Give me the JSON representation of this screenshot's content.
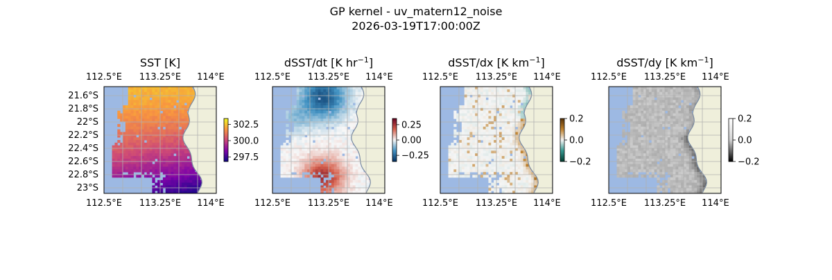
{
  "figure": {
    "title_line1": "GP kernel - uv_matern12_noise",
    "title_line2": "2026-03-19T17:00:00Z"
  },
  "chart_data": [
    {
      "type": "heatmap",
      "title": "SST [K]",
      "title_base": "SST [K]",
      "title_sup": "",
      "title_tail": "",
      "x_ticks": [
        "112.5°E",
        "113.25°E",
        "114°E"
      ],
      "y_ticks": [
        "21.6°S",
        "21.8°S",
        "22°S",
        "22.2°S",
        "22.4°S",
        "22.6°S",
        "22.8°S",
        "23°S"
      ],
      "colormap": "plasma",
      "colorbar": {
        "ticks": [
          "302.5",
          "300.0",
          "297.5"
        ],
        "range": [
          296.8,
          303.4
        ]
      }
    },
    {
      "type": "heatmap",
      "title": "dSST/dt [K hr^-1]",
      "title_base": "dSST/dt [K hr",
      "title_sup": "−1",
      "title_tail": "]",
      "x_ticks": [
        "112.5°E",
        "113.25°E",
        "114°E"
      ],
      "colormap": "RdBu_r",
      "colorbar": {
        "ticks": [
          "0.25",
          "0.00",
          "−0.25"
        ],
        "range": [
          -0.35,
          0.35
        ]
      }
    },
    {
      "type": "heatmap",
      "title": "dSST/dx [K km^-1]",
      "title_base": "dSST/dx [K km",
      "title_sup": "−1",
      "title_tail": "]",
      "x_ticks": [
        "112.5°E",
        "113.25°E",
        "114°E"
      ],
      "colormap": "BrBG_r",
      "colorbar": {
        "ticks": [
          "0.2",
          "0.0",
          "−0.2"
        ],
        "range": [
          -0.2,
          0.2
        ]
      }
    },
    {
      "type": "heatmap",
      "title": "dSST/dy [K km^-1]",
      "title_base": "dSST/dy [K km",
      "title_sup": "−1",
      "title_tail": "]",
      "x_ticks": [
        "112.5°E",
        "113.25°E",
        "114°E"
      ],
      "colormap": "gray_r",
      "colorbar": {
        "ticks": [
          "0.2",
          "0.0",
          "−0.2"
        ],
        "range": [
          -0.2,
          0.2
        ]
      }
    }
  ],
  "colors": {
    "ocean_mask": "#9db9e3",
    "land": "#efefdb",
    "coast": "#7a8aa0",
    "grid": "#b0b0b0"
  }
}
